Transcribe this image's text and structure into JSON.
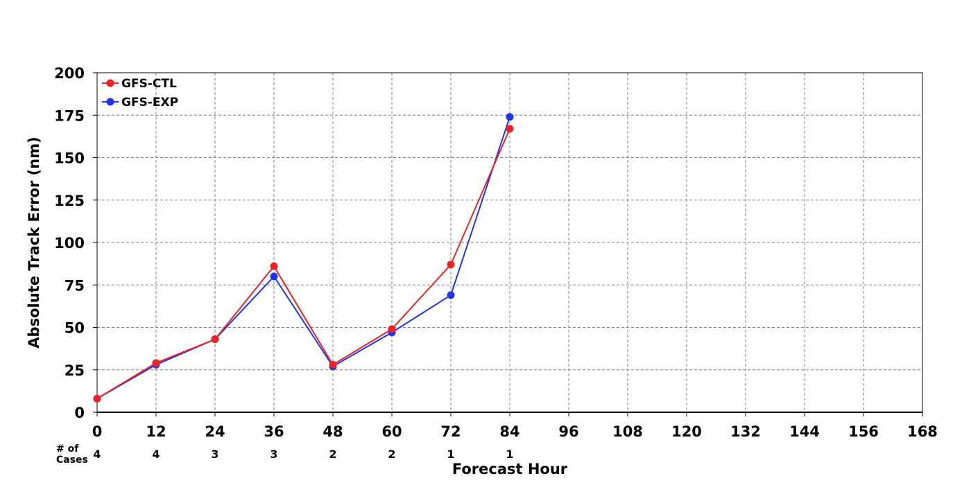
{
  "chart_data": {
    "type": "line",
    "title": "",
    "xlabel": "Forecast Hour",
    "ylabel": "Absolute Track Error (nm)",
    "xlim": [
      0,
      168
    ],
    "ylim": [
      0,
      200
    ],
    "x_ticks": [
      0,
      12,
      24,
      36,
      48,
      60,
      72,
      84,
      96,
      108,
      120,
      132,
      144,
      156,
      168
    ],
    "y_ticks": [
      0,
      25,
      50,
      75,
      100,
      125,
      150,
      175,
      200
    ],
    "grid": true,
    "legend_position": "top-left",
    "x": [
      0,
      12,
      24,
      36,
      48,
      60,
      72,
      84
    ],
    "series": [
      {
        "name": "GFS-CTL",
        "color": "#ee2222",
        "values": [
          8,
          29,
          43,
          86,
          28,
          49,
          87,
          167
        ]
      },
      {
        "name": "GFS-EXP",
        "color": "#2233ee",
        "values": [
          8,
          28,
          43,
          80,
          27,
          47,
          69,
          174
        ]
      }
    ],
    "cases": {
      "label_line1": "# of",
      "label_line2": "Cases",
      "x": [
        0,
        12,
        24,
        36,
        48,
        60,
        72,
        84
      ],
      "values": [
        "4",
        "4",
        "3",
        "3",
        "2",
        "2",
        "1",
        "1"
      ]
    }
  }
}
